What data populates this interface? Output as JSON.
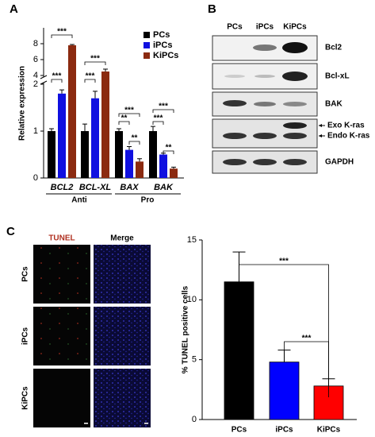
{
  "panel_labels": [
    "A",
    "B",
    "C"
  ],
  "chart_data": [
    {
      "type": "bar",
      "ylabel": "Relative expression",
      "categories": [
        "BCL2",
        "BCL-XL",
        "BAX",
        "BAK"
      ],
      "category_groups": [
        "Anti",
        "Pro"
      ],
      "series": [
        {
          "name": "PCs",
          "color": "#000000",
          "values": [
            1,
            1,
            1,
            1
          ],
          "errors": [
            0.05,
            0.15,
            0.05,
            0.1
          ]
        },
        {
          "name": "iPCs",
          "color": "#1010e0",
          "values": [
            1.8,
            1.7,
            0.6,
            0.5
          ],
          "errors": [
            0.08,
            0.15,
            0.07,
            0.03
          ]
        },
        {
          "name": "KiPCs",
          "color": "#8b2a10",
          "values": [
            7.8,
            4.5,
            0.35,
            0.2
          ],
          "errors": [
            0.1,
            0.3,
            0.06,
            0.03
          ]
        }
      ],
      "ylim": [
        0,
        10
      ],
      "y_break": [
        2,
        4
      ],
      "yticks": [
        0,
        1,
        2,
        4,
        6,
        8
      ],
      "legend": "upper right",
      "annotations": [
        "***",
        "***",
        "***",
        "***",
        "**",
        "***",
        "**",
        "***",
        "***",
        "**"
      ]
    },
    {
      "type": "bar",
      "ylabel": "% TUNEL positive cells",
      "categories": [
        "PCs",
        "iPCs",
        "KiPCs"
      ],
      "values": [
        11.5,
        4.8,
        2.8
      ],
      "errors": [
        2.5,
        1.0,
        0.6
      ],
      "colors": [
        "#000000",
        "#0000ff",
        "#ff0000"
      ],
      "ylim": [
        0,
        15
      ],
      "yticks": [
        0,
        5,
        10,
        15
      ],
      "annotations": [
        "***",
        "***"
      ]
    }
  ],
  "blot": {
    "columns": [
      "PCs",
      "iPCs",
      "KiPCs"
    ],
    "rows": [
      "Bcl2",
      "Bcl-xL",
      "BAK",
      "Exo K-ras",
      "Endo K-ras",
      "GAPDH"
    ]
  },
  "images": {
    "columns": [
      "TUNEL",
      "Merge"
    ],
    "rows": [
      "PCs",
      "iPCs",
      "KiPCs"
    ]
  }
}
